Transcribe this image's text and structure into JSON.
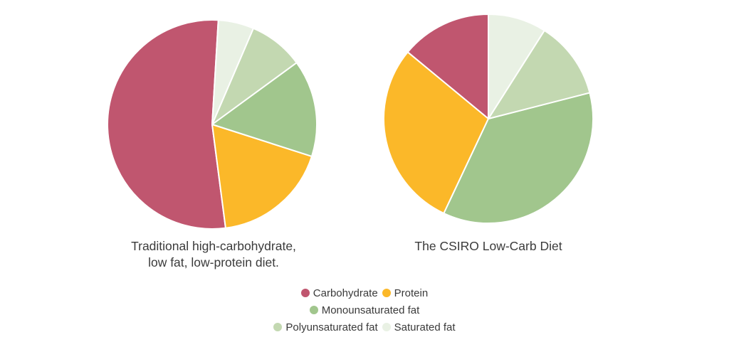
{
  "colors": {
    "carbohydrate": "#c0566f",
    "protein": "#fbb829",
    "monounsaturated": "#a1c68d",
    "polyunsaturated": "#c3d8b1",
    "saturated": "#e9f1e4"
  },
  "chart_data": [
    {
      "type": "pie",
      "title": "Traditional high-carbohydrate, low fat, low-protein diet.",
      "title_lines": [
        "Traditional high-carbohydrate,",
        "low fat, low-protein diet."
      ],
      "labels": [
        "Carbohydrate",
        "Protein",
        "Monounsaturated fat",
        "Polyunsaturated fat",
        "Saturated fat"
      ],
      "values": [
        53,
        18,
        15,
        8.5,
        5.5
      ]
    },
    {
      "type": "pie",
      "title": "The CSIRO Low-Carb Diet",
      "title_lines": [
        "The CSIRO Low-Carb Diet"
      ],
      "labels": [
        "Carbohydrate",
        "Protein",
        "Monounsaturated fat",
        "Polyunsaturated fat",
        "Saturated fat"
      ],
      "values": [
        14,
        29,
        36,
        12,
        9
      ]
    }
  ],
  "legend": {
    "rows": [
      [
        {
          "label": "Carbohydrate",
          "color_key": "carbohydrate"
        },
        {
          "label": "Protein",
          "color_key": "protein"
        }
      ],
      [
        {
          "label": "Monounsaturated fat",
          "color_key": "monounsaturated"
        }
      ],
      [
        {
          "label": "Polyunsaturated fat",
          "color_key": "polyunsaturated"
        },
        {
          "label": "Saturated fat",
          "color_key": "saturated"
        }
      ]
    ]
  }
}
